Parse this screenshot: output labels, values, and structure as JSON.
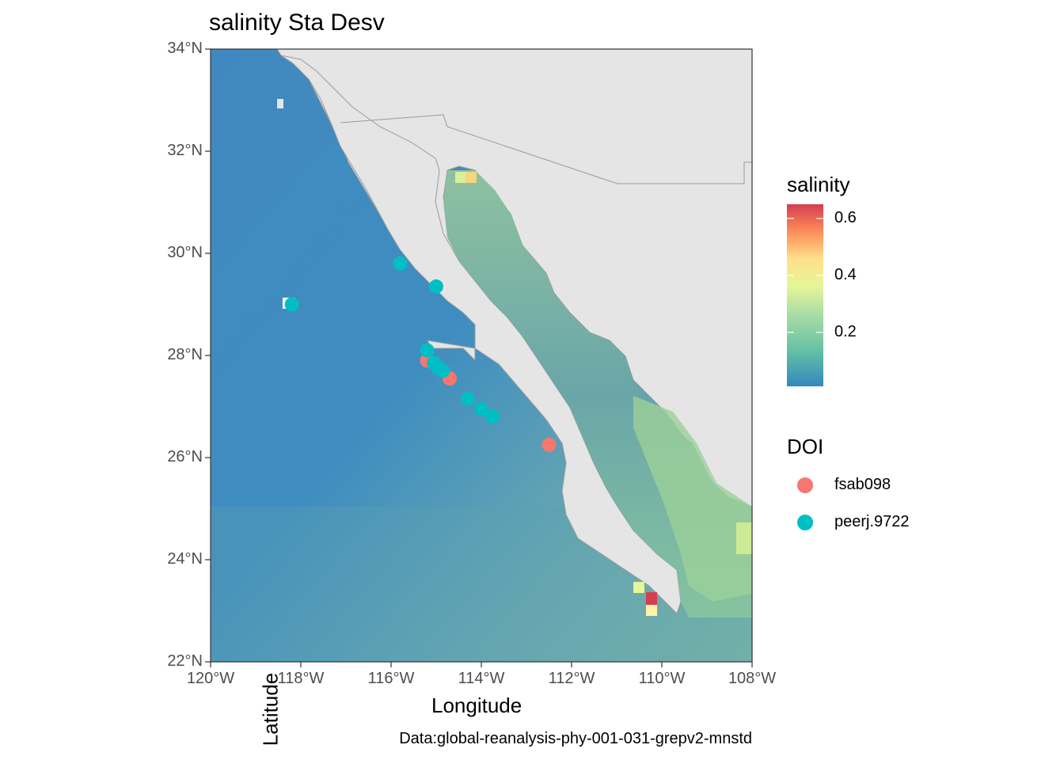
{
  "map": {
    "title": "salinity Sta Desv",
    "caption": "Data:global-reanalysis-phy-001-031-grepv2-mnstd",
    "xlabel": "Longitude",
    "ylabel": "Latitude",
    "lon_range": [
      -120,
      -108
    ],
    "lat_range": [
      22,
      34
    ],
    "x_ticks": [
      "120°W",
      "118°W",
      "116°W",
      "114°W",
      "112°W",
      "110°W",
      "108°W"
    ],
    "y_ticks": [
      "22°N",
      "24°N",
      "26°N",
      "28°N",
      "30°N",
      "32°N",
      "34°N"
    ],
    "land_color": "#e5e5e5",
    "ocean_low_color": "#3b88bf",
    "ocean_mid_color": "#77b4a6"
  },
  "legend": {
    "fill_title": "salinity",
    "fill_ticks": [
      "0.6",
      "0.4",
      "0.2"
    ],
    "fill_tick_values": [
      0.6,
      0.4,
      0.2
    ],
    "fill_range": [
      0.01,
      0.65
    ],
    "fill_colors": [
      "#3288bd",
      "#99d594",
      "#e6f598",
      "#fee08b",
      "#fc8d59",
      "#d53e4f"
    ],
    "color_title": "DOI",
    "color_items": [
      {
        "label": "fsab098",
        "color": "#f8766d"
      },
      {
        "label": "peerj.9722",
        "color": "#00bfc4"
      }
    ]
  },
  "chart_data": {
    "type": "scatter",
    "title": "salinity Sta Desv",
    "xlabel": "Longitude",
    "ylabel": "Latitude",
    "xlim": [
      -120,
      -108
    ],
    "ylim": [
      22,
      34
    ],
    "series": [
      {
        "name": "fsab098",
        "color": "#f8766d",
        "points": [
          [
            -115.2,
            27.9
          ],
          [
            -114.7,
            27.55
          ],
          [
            -112.5,
            26.25
          ]
        ]
      },
      {
        "name": "peerj.9722",
        "color": "#00bfc4",
        "points": [
          [
            -115.8,
            29.8
          ],
          [
            -115.0,
            29.35
          ],
          [
            -118.2,
            29.0
          ],
          [
            -115.2,
            28.1
          ],
          [
            -115.05,
            27.85
          ],
          [
            -114.95,
            27.75
          ],
          [
            -114.85,
            27.7
          ],
          [
            -114.3,
            27.15
          ],
          [
            -114.0,
            26.95
          ],
          [
            -113.75,
            26.8
          ]
        ]
      }
    ]
  }
}
